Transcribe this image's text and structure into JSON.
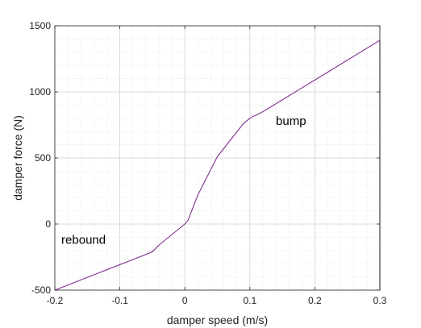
{
  "chart_data": {
    "type": "line",
    "xlabel": "damper speed (m/s)",
    "ylabel": "damper force (N)",
    "xlim": [
      -0.2,
      0.3
    ],
    "ylim": [
      -500,
      1500
    ],
    "xticks": [
      -0.2,
      -0.1,
      0,
      0.1,
      0.2,
      0.3
    ],
    "xtick_labels": [
      "-0.2",
      "-0.1",
      "0",
      "0.1",
      "0.2",
      "0.3"
    ],
    "yticks": [
      -500,
      0,
      500,
      1000,
      1500
    ],
    "ytick_labels": [
      "-500",
      "0",
      "500",
      "1000",
      "1500"
    ],
    "grid": "major and minor dotted",
    "legend": "none",
    "series": [
      {
        "color": "#7e2f8e",
        "x": [
          -0.2,
          -0.06,
          -0.05,
          -0.04,
          -0.02,
          0,
          0.005,
          0.02,
          0.05,
          0.09,
          0.1,
          0.105,
          0.11,
          0.12,
          0.2,
          0.3,
          0.3
        ],
        "y": [
          -500,
          -230,
          -210,
          -160,
          -80,
          0,
          30,
          220,
          510,
          760,
          800,
          815,
          825,
          850,
          1090,
          1390,
          -500
        ]
      }
    ],
    "annotations": [
      {
        "text": "bump",
        "x": 0.14,
        "y": 750
      },
      {
        "text": "rebound",
        "x": -0.19,
        "y": -150
      }
    ]
  }
}
